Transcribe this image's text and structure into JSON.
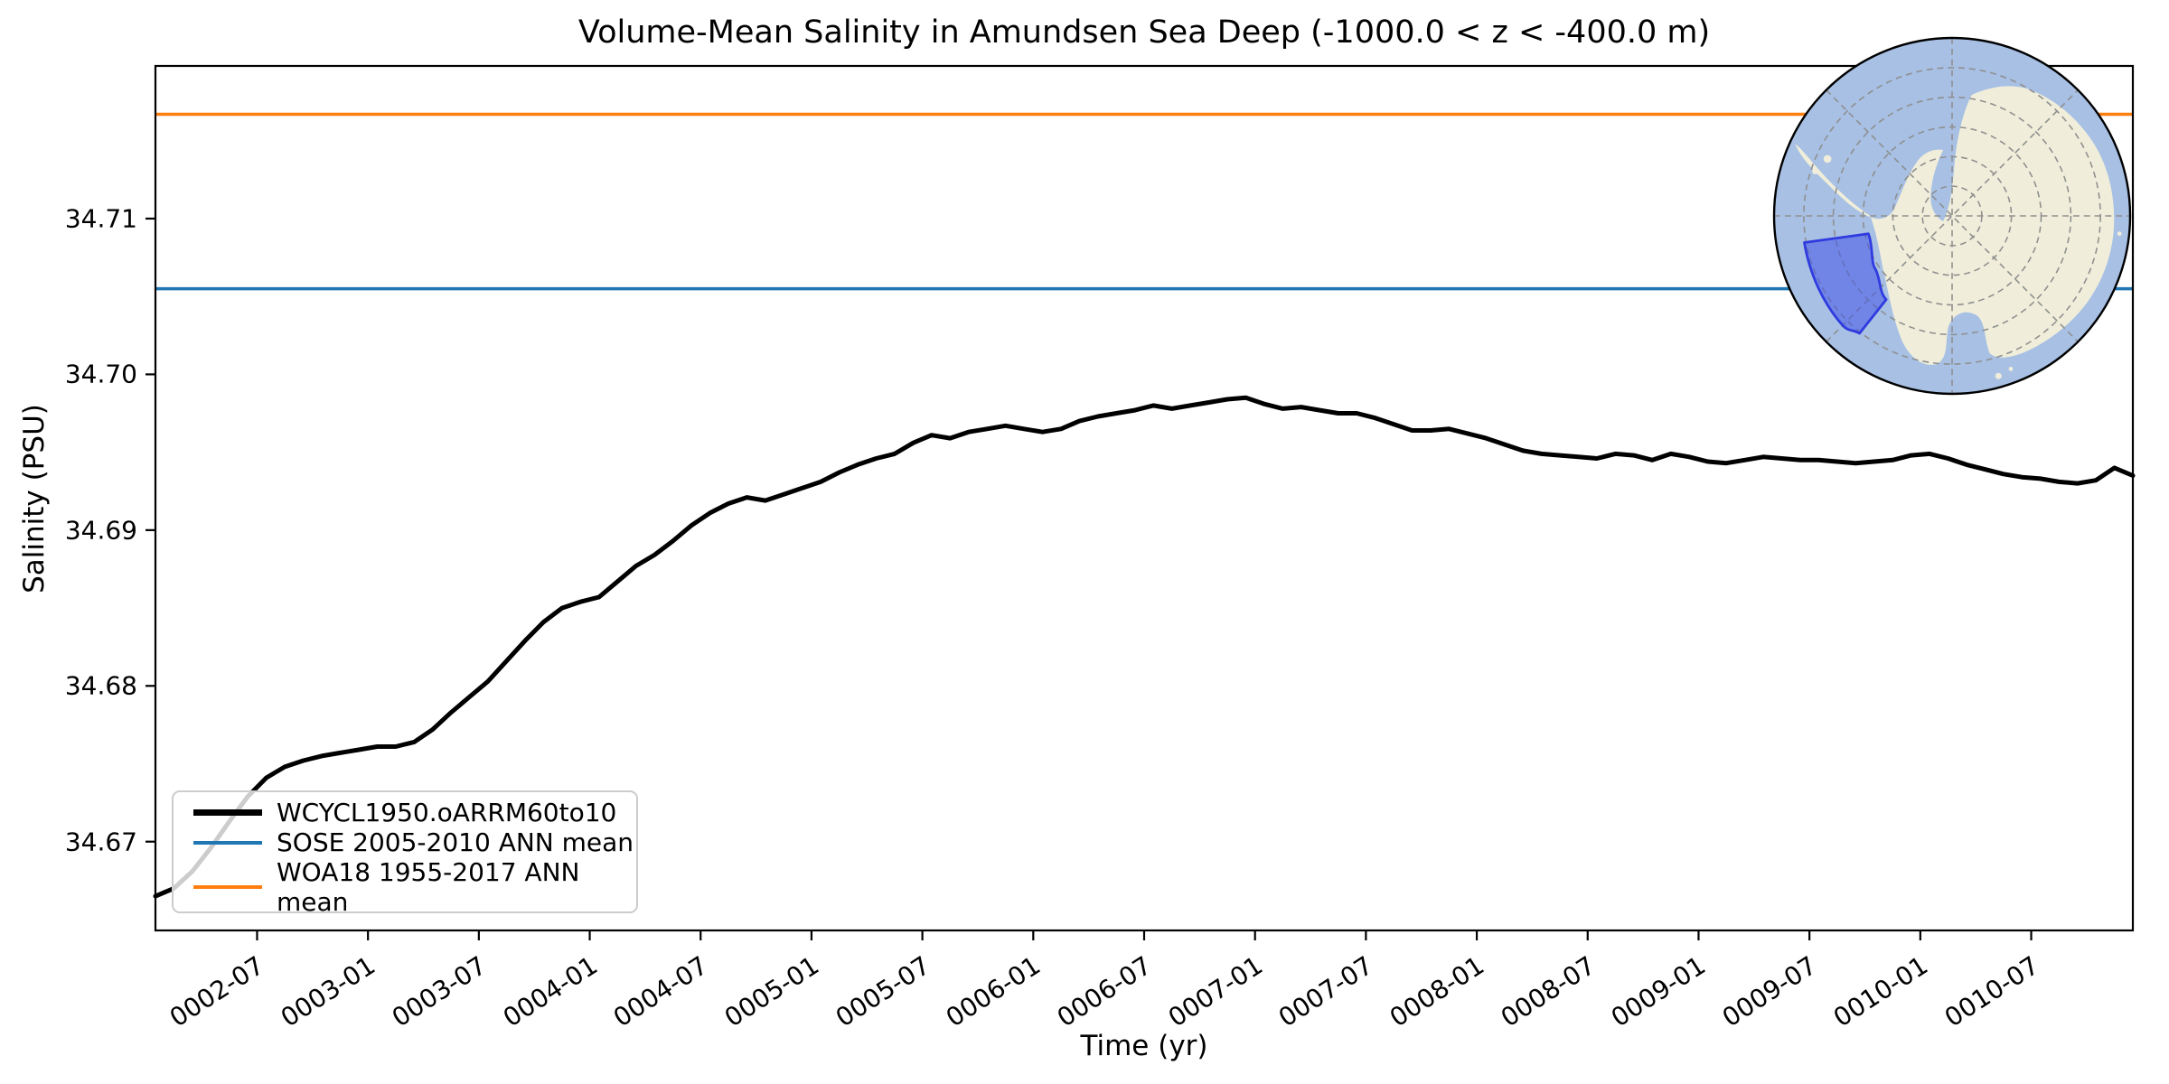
{
  "chart_data": {
    "type": "line",
    "title": "Volume-Mean Salinity in Amundsen Sea Deep (-1000.0 < z < -400.0 m)",
    "xlabel": "Time (yr)",
    "ylabel": "Salinity (PSU)",
    "ylim": [
      34.6643,
      34.7198
    ],
    "grid": false,
    "x_tick_labels": [
      "0002-07",
      "0003-01",
      "0003-07",
      "0004-01",
      "0004-07",
      "0005-01",
      "0005-07",
      "0006-01",
      "0006-07",
      "0007-01",
      "0007-07",
      "0008-01",
      "0008-07",
      "0009-01",
      "0009-07",
      "0010-01",
      "0010-07"
    ],
    "y_tick_labels": [
      "34.67",
      "34.68",
      "34.69",
      "34.70",
      "34.71"
    ],
    "x_axis": {
      "unit": "monthly means",
      "start": "0002-01",
      "end": "0010-12",
      "n_points": 108,
      "first_tick_month_index": 5.5,
      "tick_step_months": 6
    },
    "series": [
      {
        "name": "WCYCL1950.oARRM60to10",
        "type": "line",
        "color": "#000000",
        "linewidth": 5,
        "values": [
          34.6665,
          34.667,
          34.6681,
          34.6696,
          34.6713,
          34.6729,
          34.6741,
          34.6748,
          34.6752,
          34.6755,
          34.6757,
          34.6759,
          34.6761,
          34.6761,
          34.6764,
          34.6772,
          34.6783,
          34.6793,
          34.6803,
          34.6816,
          34.6829,
          34.6841,
          34.685,
          34.6854,
          34.6857,
          34.6867,
          34.6877,
          34.6884,
          34.6893,
          34.6903,
          34.6911,
          34.6917,
          34.6921,
          34.6919,
          34.6923,
          34.6927,
          34.6931,
          34.6937,
          34.6942,
          34.6946,
          34.6949,
          34.6956,
          34.6961,
          34.6959,
          34.6963,
          34.6965,
          34.6967,
          34.6965,
          34.6963,
          34.6965,
          34.697,
          34.6973,
          34.6975,
          34.6977,
          34.698,
          34.6978,
          34.698,
          34.6982,
          34.6984,
          34.6985,
          34.6981,
          34.6978,
          34.6979,
          34.6977,
          34.6975,
          34.6975,
          34.6972,
          34.6968,
          34.6964,
          34.6964,
          34.6965,
          34.6962,
          34.6959,
          34.6955,
          34.6951,
          34.6949,
          34.6948,
          34.6947,
          34.6946,
          34.6949,
          34.6948,
          34.6945,
          34.6949,
          34.6947,
          34.6944,
          34.6943,
          34.6945,
          34.6947,
          34.6946,
          34.6945,
          34.6945,
          34.6944,
          34.6943,
          34.6944,
          34.6945,
          34.6948,
          34.6949,
          34.6946,
          34.6942,
          34.6939,
          34.6936,
          34.6934,
          34.6933,
          34.6931,
          34.693,
          34.6932,
          34.694,
          34.6935
        ]
      },
      {
        "name": "SOSE 2005-2010 ANN mean",
        "type": "hline",
        "color": "#1f77b4",
        "linewidth": 3.5,
        "value": 34.7055
      },
      {
        "name": "WOA18 1955-2017 ANN mean",
        "type": "hline",
        "color": "#ff7f0e",
        "linewidth": 3.5,
        "value": 34.7167
      }
    ],
    "legend": {
      "position": "lower left"
    },
    "inset_map": {
      "description": "South polar stereographic map of Antarctica with Amundsen Sea sector highlighted",
      "ocean_color": "#a7c0e4",
      "land_color": "#f0eeda",
      "region_fill": "#4453e6",
      "region_stroke": "#2f3ae0",
      "graticule_color": "#8f8f8f",
      "border_color": "#000000"
    }
  }
}
